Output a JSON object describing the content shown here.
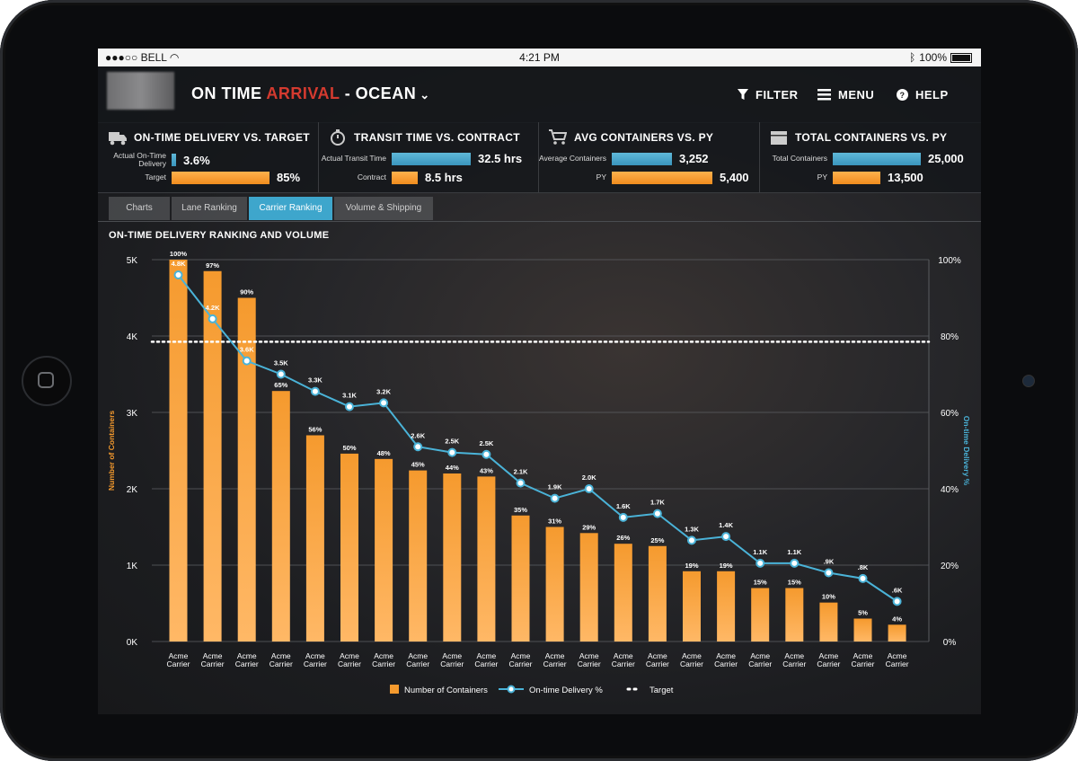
{
  "status_bar": {
    "carrier": "BELL",
    "time": "4:21 PM",
    "battery": "100%"
  },
  "header": {
    "title_part1": "ON TIME ",
    "title_part2": "ARRIVAL",
    "title_part3": " - OCEAN",
    "filter_label": "FILTER",
    "menu_label": "MENU",
    "help_label": "HELP"
  },
  "kpis": [
    {
      "title": "ON-TIME DELIVERY VS. TARGET",
      "icon": "truck-icon",
      "row1_label": "Actual On-Time Delivery",
      "row1_value": "3.6%",
      "row1_fill": 0.042,
      "row2_label": "Target",
      "row2_value": "85%",
      "row2_fill": 0.85
    },
    {
      "title": "TRANSIT TIME VS. CONTRACT",
      "icon": "stopwatch-icon",
      "row1_label": "Actual Transit Time",
      "row1_value": "32.5 hrs",
      "row1_fill": 1.0,
      "row2_label": "Contract",
      "row2_value": "8.5 hrs",
      "row2_fill": 0.26
    },
    {
      "title": "AVG CONTAINERS VS. PY",
      "icon": "cart-icon",
      "row1_label": "Average Containers",
      "row1_value": "3,252",
      "row1_fill": 0.6,
      "row2_label": "PY",
      "row2_value": "5,400",
      "row2_fill": 1.0
    },
    {
      "title": "TOTAL CONTAINERS VS. PY",
      "icon": "box-icon",
      "row1_label": "Total Containers",
      "row1_value": "25,000",
      "row1_fill": 1.0,
      "row2_label": "PY",
      "row2_value": "13,500",
      "row2_fill": 0.54
    }
  ],
  "tabs": [
    {
      "label": "Charts",
      "active": false
    },
    {
      "label": "Lane Ranking",
      "active": false
    },
    {
      "label": "Carrier Ranking",
      "active": true
    },
    {
      "label": "Volume & Shipping",
      "active": false
    }
  ],
  "colors": {
    "bar": "#f59a2e",
    "line": "#4ab3d8",
    "accent_red": "#d43a2f"
  },
  "chart_data": {
    "type": "bar",
    "title": "ON-TIME DELIVERY RANKING AND VOLUME",
    "ylabel": "Number of Containers",
    "y2label": "On-time Delivery %",
    "ylim": [
      0,
      5000
    ],
    "y2lim": [
      0,
      100
    ],
    "y_ticks": [
      "0K",
      "1K",
      "2K",
      "3K",
      "4K",
      "5K"
    ],
    "y2_ticks": [
      "0%",
      "20%",
      "40%",
      "60%",
      "80%",
      "100%"
    ],
    "categories": [
      "Acme Carrier",
      "Acme Carrier",
      "Acme Carrier",
      "Acme Carrier",
      "Acme Carrier",
      "Acme Carrier",
      "Acme Carrier",
      "Acme Carrier",
      "Acme Carrier",
      "Acme Carrier",
      "Acme Carrier",
      "Acme Carrier",
      "Acme Carrier",
      "Acme Carrier",
      "Acme Carrier",
      "Acme Carrier",
      "Acme Carrier",
      "Acme Carrier",
      "Acme Carrier",
      "Acme Carrier",
      "Acme Carrier",
      "Acme Carrier"
    ],
    "series": [
      {
        "name": "Number of Containers",
        "type": "bar",
        "values": [
          5000,
          4850,
          4500,
          3280,
          2700,
          2460,
          2390,
          2240,
          2200,
          2160,
          1650,
          1500,
          1420,
          1280,
          1250,
          920,
          920,
          700,
          700,
          510,
          300,
          220
        ],
        "labels": [
          "100%",
          "97%",
          "90%",
          "65%",
          "56%",
          "50%",
          "48%",
          "45%",
          "44%",
          "43%",
          "35%",
          "31%",
          "29%",
          "26%",
          "25%",
          "19%",
          "19%",
          "15%",
          "15%",
          "10%",
          "5%",
          "4%"
        ]
      },
      {
        "name": "On-time Delivery %",
        "type": "line",
        "values": [
          96,
          84.5,
          73.5,
          70,
          65.5,
          61.5,
          62.5,
          51,
          49.5,
          49,
          41.5,
          37.5,
          40,
          32.5,
          33.5,
          26.5,
          27.5,
          20.5,
          20.5,
          18,
          16.5,
          10.5
        ],
        "labels": [
          "4.8K",
          "4.2K",
          "3.6K",
          "3.5K",
          "3.3K",
          "3.1K",
          "3.2K",
          "2.6K",
          "2.5K",
          "2.5K",
          "2.1K",
          "1.9K",
          "2.0K",
          "1.6K",
          "1.7K",
          "1.3K",
          "1.4K",
          "1.1K",
          "1.1K",
          ".9K",
          ".8K",
          ".6K"
        ]
      }
    ],
    "target": {
      "name": "Target",
      "value": 78.5
    },
    "legend": [
      "Number of Containers",
      "On-time Delivery %",
      "Target"
    ],
    "legend_position": "bottom",
    "grid": true
  }
}
